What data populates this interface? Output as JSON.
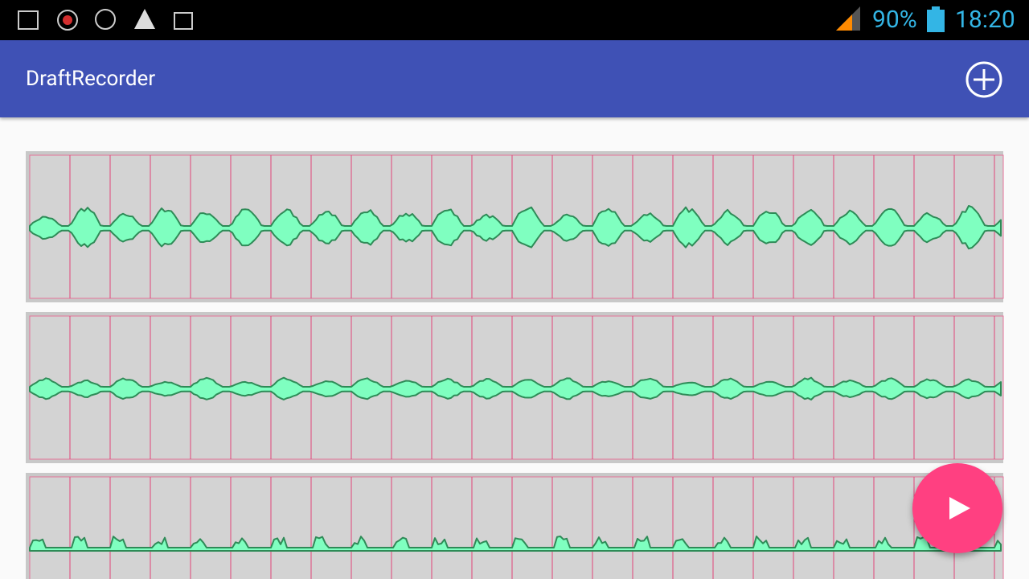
{
  "status_bar": {
    "battery": "90%",
    "time": "18:20"
  },
  "app_bar": {
    "title": "DraftRecorder"
  }
}
